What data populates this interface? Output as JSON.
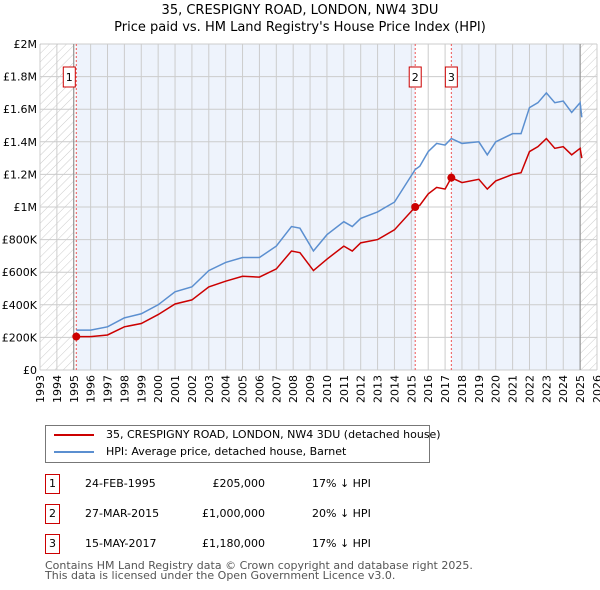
{
  "chart_data": {
    "type": "line",
    "title": "35, CRESPIGNY ROAD, LONDON, NW4 3DU",
    "subtitle": "Price paid vs. HM Land Registry's House Price Index (HPI)",
    "xlim": [
      1993,
      2026
    ],
    "ylim": [
      0,
      2000000
    ],
    "x_ticks": [
      "1993",
      "1994",
      "1995",
      "1996",
      "1997",
      "1998",
      "1999",
      "2000",
      "2001",
      "2002",
      "2003",
      "2004",
      "2005",
      "2006",
      "2007",
      "2008",
      "2009",
      "2010",
      "2011",
      "2012",
      "2013",
      "2014",
      "2015",
      "2016",
      "2017",
      "2018",
      "2019",
      "2020",
      "2021",
      "2022",
      "2023",
      "2024",
      "2025",
      "2026"
    ],
    "y_ticks": [
      {
        "v": 0,
        "l": "£0"
      },
      {
        "v": 200000,
        "l": "£200K"
      },
      {
        "v": 400000,
        "l": "£400K"
      },
      {
        "v": 600000,
        "l": "£600K"
      },
      {
        "v": 800000,
        "l": "£800K"
      },
      {
        "v": 1000000,
        "l": "£1M"
      },
      {
        "v": 1200000,
        "l": "£1.2M"
      },
      {
        "v": 1400000,
        "l": "£1.4M"
      },
      {
        "v": 1600000,
        "l": "£1.6M"
      },
      {
        "v": 1800000,
        "l": "£1.8M"
      },
      {
        "v": 2000000,
        "l": "£2M"
      }
    ],
    "series": [
      {
        "name": "35, CRESPIGNY ROAD, LONDON, NW4 3DU (detached house)",
        "color": "#cc0000",
        "x": [
          1995.15,
          1996,
          1997,
          1998,
          1999,
          2000,
          2001,
          2002,
          2003,
          2004,
          2005,
          2006,
          2007,
          2007.9,
          2008.4,
          2009.2,
          2010,
          2011,
          2011.5,
          2012,
          2013,
          2014,
          2015.23,
          2015.5,
          2016,
          2016.5,
          2017,
          2017.37,
          2018,
          2019,
          2019.5,
          2020,
          2021,
          2021.5,
          2022,
          2022.5,
          2023,
          2023.5,
          2024,
          2024.5,
          2025,
          2025.1
        ],
        "y": [
          205,
          205,
          215,
          265,
          285,
          340,
          405,
          430,
          510,
          545,
          575,
          570,
          620,
          730,
          720,
          610,
          680,
          760,
          730,
          780,
          800,
          860,
          1000,
          1010,
          1080,
          1120,
          1110,
          1180,
          1150,
          1170,
          1110,
          1160,
          1200,
          1210,
          1340,
          1370,
          1420,
          1360,
          1370,
          1320,
          1360,
          1300
        ]
      },
      {
        "name": "HPI: Average price, detached house, Barnet",
        "color": "#5b8fd0",
        "x": [
          1995.15,
          1996,
          1997,
          1998,
          1999,
          2000,
          2001,
          2002,
          2003,
          2004,
          2005,
          2006,
          2007,
          2007.9,
          2008.4,
          2009.2,
          2010,
          2011,
          2011.5,
          2012,
          2013,
          2014,
          2015.23,
          2015.5,
          2016,
          2016.5,
          2017,
          2017.37,
          2018,
          2019,
          2019.5,
          2020,
          2021,
          2021.5,
          2022,
          2022.5,
          2023,
          2023.5,
          2024,
          2024.5,
          2025,
          2025.1
        ],
        "y": [
          245,
          245,
          265,
          320,
          345,
          400,
          480,
          510,
          610,
          660,
          690,
          690,
          760,
          880,
          870,
          730,
          830,
          910,
          880,
          930,
          970,
          1030,
          1230,
          1250,
          1340,
          1390,
          1380,
          1420,
          1390,
          1400,
          1320,
          1400,
          1450,
          1450,
          1610,
          1640,
          1700,
          1640,
          1650,
          1580,
          1640,
          1550
        ]
      }
    ],
    "y_unit": "thousands GBP",
    "sales": [
      {
        "n": "1",
        "x": 1995.15,
        "y": 205
      },
      {
        "n": "2",
        "x": 2015.23,
        "y": 1000
      },
      {
        "n": "3",
        "x": 2017.37,
        "y": 1180
      }
    ]
  },
  "legend": [
    "35, CRESPIGNY ROAD, LONDON, NW4 3DU (detached house)",
    "HPI: Average price, detached house, Barnet"
  ],
  "transactions": [
    {
      "n": "1",
      "date": "24-FEB-1995",
      "price": "£205,000",
      "hpi": "17% ↓ HPI"
    },
    {
      "n": "2",
      "date": "27-MAR-2015",
      "price": "£1,000,000",
      "hpi": "20% ↓ HPI"
    },
    {
      "n": "3",
      "date": "15-MAY-2017",
      "price": "£1,180,000",
      "hpi": "17% ↓ HPI"
    }
  ],
  "footer": [
    "Contains HM Land Registry data © Crown copyright and database right 2025.",
    "This data is licensed under the Open Government Licence v3.0."
  ]
}
